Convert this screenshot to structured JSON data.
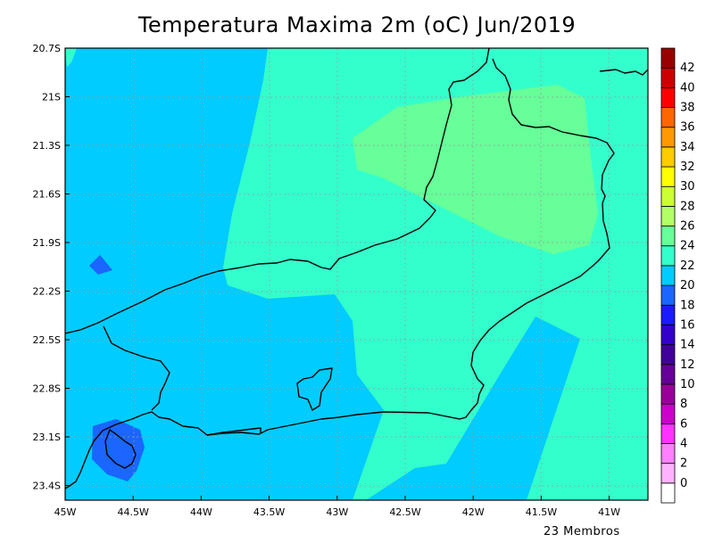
{
  "title": "Temperatura Maxima 2m (oC) Jun/2019",
  "footer_note": "23 Membros",
  "lat_labels": [
    "20.7S",
    "21S",
    "21.3S",
    "21.6S",
    "21.9S",
    "22.2S",
    "22.5S",
    "22.8S",
    "23.1S",
    "23.4S"
  ],
  "lon_labels": [
    "45W",
    "44.5W",
    "44W",
    "43.5W",
    "43W",
    "42.5W",
    "42W",
    "41.5W",
    "41W"
  ],
  "colorbar": {
    "labels": [
      "0",
      "2",
      "4",
      "6",
      "8",
      "10",
      "12",
      "14",
      "16",
      "18",
      "20",
      "22",
      "24",
      "26",
      "28",
      "30",
      "32",
      "34",
      "36",
      "38",
      "40",
      "42"
    ],
    "colors": [
      "#ffffff",
      "#ffb3ff",
      "#ff80ff",
      "#ff33ff",
      "#cc00cc",
      "#990099",
      "#660099",
      "#400099",
      "#3300cc",
      "#1a1aff",
      "#1a66ff",
      "#00ccff",
      "#33ffcc",
      "#66ff99",
      "#b3ff66",
      "#ccff33",
      "#ffff00",
      "#ffcc00",
      "#ff9900",
      "#ff6600",
      "#ff0000",
      "#cc0000",
      "#990000"
    ]
  },
  "field_colors": {
    "band_20_22": "#1a66ff",
    "band_22_24": "#00ccff",
    "band_24_26": "#33ffcc",
    "band_26_28": "#66ff99"
  }
}
